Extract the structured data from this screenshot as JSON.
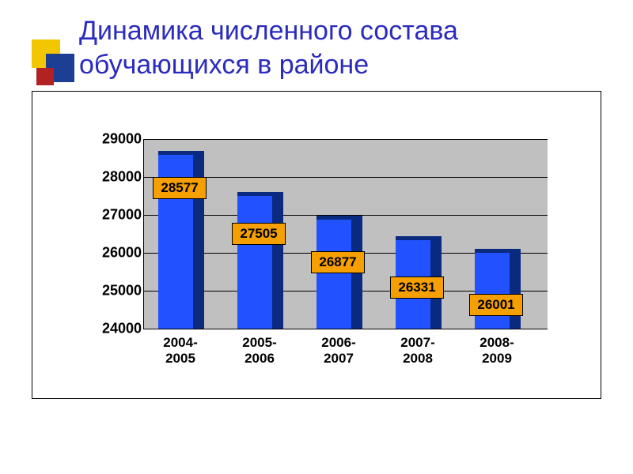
{
  "title": "Динамика численного состава обучающихся в районе",
  "title_color": "#2b2bbd",
  "decoration": {
    "yellow": "#f2c600",
    "blue": "#1c3f94",
    "red": "#b22222"
  },
  "chart": {
    "type": "bar",
    "background_color": "#ffffff",
    "plot_background_color": "#c0c0c0",
    "grid_color": "#000000",
    "y_axis": {
      "min": 24000,
      "max": 29000,
      "step": 1000,
      "ticks": [
        24000,
        25000,
        26000,
        27000,
        28000,
        29000
      ],
      "label_fontsize": 18
    },
    "x_axis": {
      "label_fontsize": 17
    },
    "categories": [
      "2004-2005",
      "2005-2006",
      "2006-2007",
      "2007-2008",
      "2008-2009"
    ],
    "values": [
      28577,
      27505,
      26877,
      26331,
      26001
    ],
    "bar_face_color": "#2252ff",
    "bar_side_color": "#0a2a80",
    "bar_face_width": 44,
    "bar_side_width": 14,
    "group_width": 100,
    "value_label": {
      "background_color": "#f59f00",
      "text_color": "#000000",
      "border_color": "#000000",
      "fontsize": 17
    }
  }
}
